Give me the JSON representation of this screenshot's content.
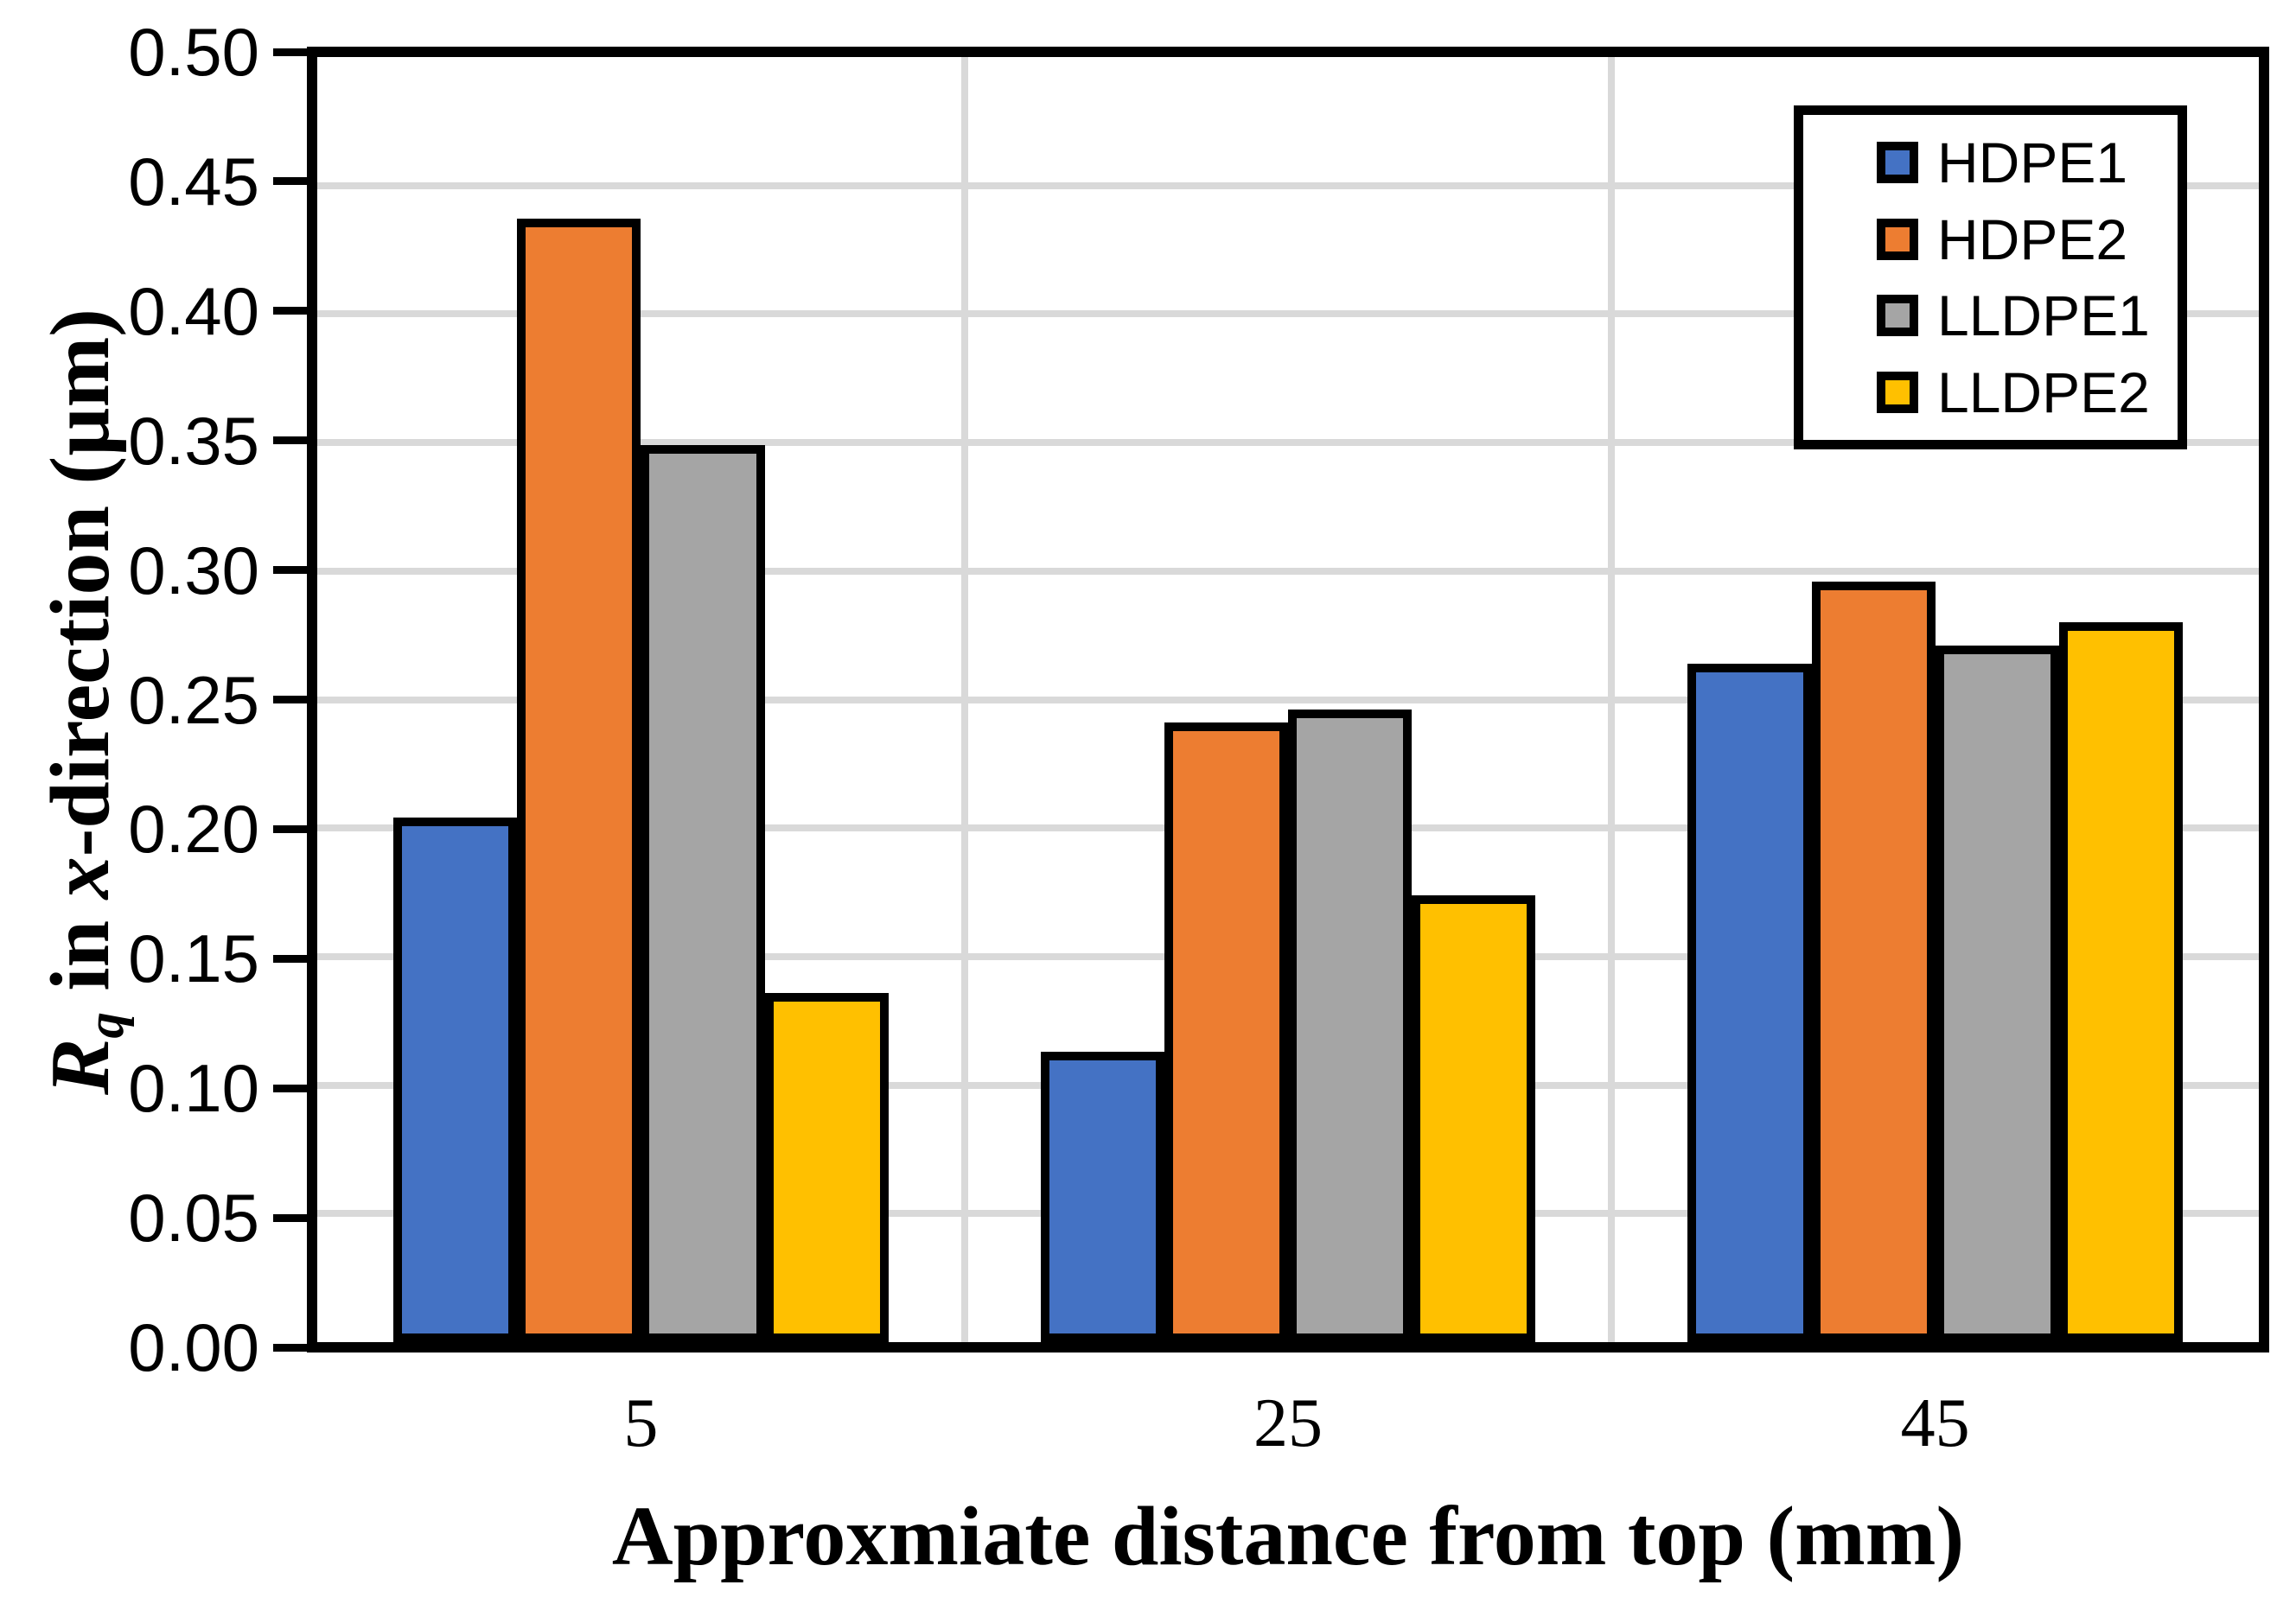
{
  "chart_data": {
    "type": "bar",
    "title": "",
    "xlabel": "Approxmiate distance from top (mm)",
    "ylabel_plain": "Rq in x-direction (µm)",
    "ylabel_rich": [
      {
        "text": "R",
        "italic": true,
        "sub": false
      },
      {
        "text": "q",
        "italic": true,
        "sub": true
      },
      {
        "text": " in ",
        "italic": false,
        "sub": false
      },
      {
        "text": "x",
        "italic": true,
        "sub": false
      },
      {
        "text": "-direction (µm)",
        "italic": false,
        "sub": false
      }
    ],
    "categories": [
      "5",
      "25",
      "45"
    ],
    "series": [
      {
        "name": "HDPE1",
        "color": "#4472C4",
        "values": [
          0.204,
          0.113,
          0.264
        ]
      },
      {
        "name": "HDPE2",
        "color": "#ED7D31",
        "values": [
          0.437,
          0.241,
          0.296
        ]
      },
      {
        "name": "LLDPE1",
        "color": "#A5A5A5",
        "values": [
          0.349,
          0.246,
          0.271
        ]
      },
      {
        "name": "LLDPE2",
        "color": "#FFC000",
        "values": [
          0.136,
          0.174,
          0.28
        ]
      }
    ],
    "ylim": [
      0.0,
      0.5
    ],
    "yticks": [
      {
        "v": 0.0,
        "label": "0.00"
      },
      {
        "v": 0.05,
        "label": "0.05"
      },
      {
        "v": 0.1,
        "label": "0.10"
      },
      {
        "v": 0.15,
        "label": "0.15"
      },
      {
        "v": 0.2,
        "label": "0.20"
      },
      {
        "v": 0.25,
        "label": "0.25"
      },
      {
        "v": 0.3,
        "label": "0.30"
      },
      {
        "v": 0.35,
        "label": "0.35"
      },
      {
        "v": 0.4,
        "label": "0.40"
      },
      {
        "v": 0.45,
        "label": "0.45"
      },
      {
        "v": 0.5,
        "label": "0.50"
      }
    ],
    "grid": {
      "horizontal": true,
      "vertical_category_boundaries": true
    },
    "legend_position": "top-right-inside"
  },
  "styles": {
    "gridline_color": "#D9D9D9",
    "axis_color": "#000000",
    "background_color": "#FFFFFF",
    "bar_border_color": "#000000"
  }
}
